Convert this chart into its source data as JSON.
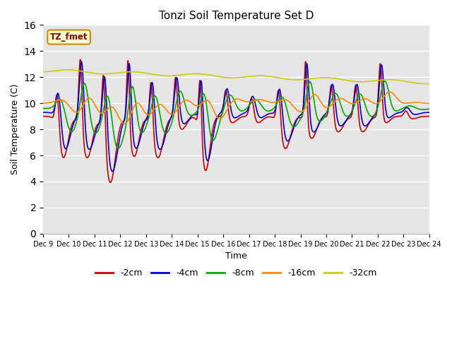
{
  "title": "Tonzi Soil Temperature Set D",
  "xlabel": "Time",
  "ylabel": "Soil Temperature (C)",
  "ylim": [
    0,
    16
  ],
  "yticks": [
    0,
    2,
    4,
    6,
    8,
    10,
    12,
    14,
    16
  ],
  "xtick_labels": [
    "Dec 9",
    "Dec 10",
    "Dec 11",
    "Dec 12",
    "Dec 13",
    "Dec 14",
    "Dec 15",
    "Dec 16",
    "Dec 17",
    "Dec 18",
    "Dec 19",
    "Dec 20",
    "Dec 21",
    "Dec 22",
    "Dec 23",
    "Dec 24"
  ],
  "colors": {
    "-2cm": "#cc0000",
    "-4cm": "#0000cc",
    "-8cm": "#00aa00",
    "-16cm": "#ff8800",
    "-32cm": "#cccc00"
  },
  "legend_label": "TZ_fmet",
  "bg_color": "#e5e5e5",
  "linewidth": 1.2
}
